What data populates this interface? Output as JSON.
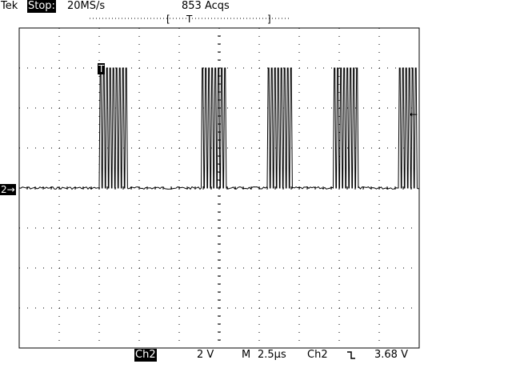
{
  "header": {
    "brand": "Tek",
    "run_state": "Stop:",
    "sample_rate": "20MS/s",
    "acquisitions": "853 Acqs",
    "trigger_position_bracket_left": "[",
    "trigger_position_label": "T",
    "trigger_position_bracket_right": "]"
  },
  "markers": {
    "trigger_marker": "T",
    "channel_ground_marker": "2→",
    "trigger_level_marker": "←"
  },
  "footer": {
    "channel": "Ch2",
    "volts_per_div": "2 V",
    "timebase_prefix": "M",
    "time_per_div": "2.5µs",
    "trigger_source": "Ch2",
    "trigger_slope_icon": "falling-edge-icon",
    "trigger_level": "3.68 V"
  },
  "colors": {
    "trace": "#000000",
    "background": "#ffffff",
    "graticule": "#000000"
  },
  "waveform": {
    "bursts": [
      {
        "start_div": 2.0,
        "pulses": 9
      },
      {
        "start_div": 4.55,
        "pulses": 8
      },
      {
        "start_div": 6.2,
        "pulses": 8
      },
      {
        "start_div": 7.85,
        "pulses": 8
      },
      {
        "start_div": 9.48,
        "pulses": 6
      }
    ],
    "pulse_period_div": 0.08,
    "low_level_div": 4.0,
    "high_level_div": 1.0
  }
}
